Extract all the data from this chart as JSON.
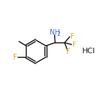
{
  "bg_color": "#ffffff",
  "bond_color": "#1a1a1a",
  "atom_colors": {
    "F": "#daa520",
    "N": "#4169e1",
    "Cl": "#4169e1",
    "C": "#1a1a1a"
  },
  "font_size_atom": 7.0,
  "line_width": 1.1,
  "figsize": [
    1.52,
    1.52
  ],
  "dpi": 100
}
